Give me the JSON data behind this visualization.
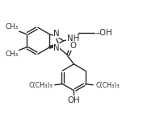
{
  "bg_color": "#ffffff",
  "line_color": "#2a2a2a",
  "line_width": 1.0,
  "font_size": 6.8,
  "figsize": [
    1.77,
    1.47
  ],
  "dpi": 100,
  "xlim": [
    0.0,
    1.0
  ],
  "ylim": [
    0.05,
    0.95
  ]
}
